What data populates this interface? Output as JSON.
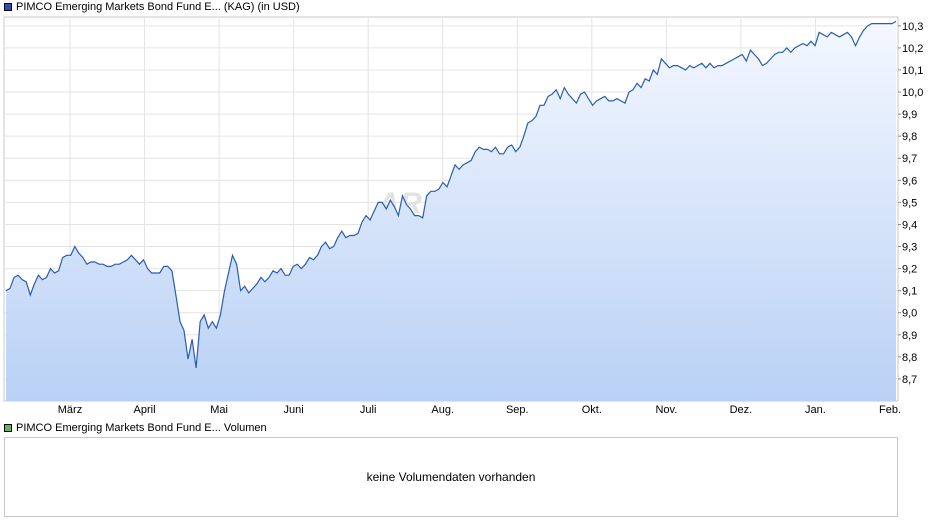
{
  "price_legend": {
    "label": "PIMCO Emerging Markets Bond Fund E... (KAG)  (in USD)",
    "color": "#2a4fa8"
  },
  "volume_legend": {
    "label": "PIMCO Emerging Markets Bond Fund E... Volumen",
    "color": "#5cb85c"
  },
  "watermark": "ARIVA.DE",
  "volume_message": "keine Volumendaten vorhanden",
  "chart_data": {
    "type": "area",
    "x_tick_labels": [
      "März",
      "April",
      "Mai",
      "Juni",
      "Juli",
      "Aug.",
      "Sep.",
      "Okt.",
      "Nov.",
      "Dez.",
      "Jan.",
      "Feb."
    ],
    "y_tick_labels": [
      "8,7",
      "8,8",
      "8,9",
      "9,0",
      "9,1",
      "9,2",
      "9,3",
      "9,4",
      "9,5",
      "9,6",
      "9,7",
      "9,8",
      "9,9",
      "10,0",
      "10,1",
      "10,2",
      "10,3"
    ],
    "y_ticks": [
      8.7,
      8.8,
      8.9,
      9.0,
      9.1,
      9.2,
      9.3,
      9.4,
      9.5,
      9.6,
      9.7,
      9.8,
      9.9,
      10.0,
      10.1,
      10.2,
      10.3
    ],
    "ylim": [
      8.6,
      10.34
    ],
    "grid": true,
    "line_color": "#2a5db0",
    "fill_top_color": "#f4f8ff",
    "fill_bottom_color": "#b9d1f5",
    "values": [
      9.1,
      9.11,
      9.16,
      9.17,
      9.15,
      9.14,
      9.08,
      9.13,
      9.17,
      9.15,
      9.16,
      9.2,
      9.18,
      9.19,
      9.25,
      9.26,
      9.26,
      9.3,
      9.27,
      9.25,
      9.22,
      9.23,
      9.23,
      9.22,
      9.22,
      9.21,
      9.21,
      9.22,
      9.22,
      9.23,
      9.24,
      9.26,
      9.24,
      9.22,
      9.24,
      9.2,
      9.18,
      9.18,
      9.18,
      9.21,
      9.21,
      9.19,
      9.08,
      8.96,
      8.92,
      8.79,
      8.88,
      8.75,
      8.96,
      8.99,
      8.93,
      8.96,
      8.93,
      8.99,
      9.1,
      9.18,
      9.26,
      9.22,
      9.1,
      9.12,
      9.09,
      9.11,
      9.13,
      9.16,
      9.14,
      9.16,
      9.19,
      9.18,
      9.2,
      9.17,
      9.17,
      9.21,
      9.22,
      9.2,
      9.22,
      9.25,
      9.24,
      9.26,
      9.3,
      9.32,
      9.29,
      9.3,
      9.34,
      9.37,
      9.34,
      9.35,
      9.35,
      9.36,
      9.41,
      9.44,
      9.42,
      9.46,
      9.5,
      9.5,
      9.47,
      9.51,
      9.48,
      9.44,
      9.53,
      9.49,
      9.47,
      9.44,
      9.44,
      9.43,
      9.53,
      9.55,
      9.55,
      9.56,
      9.59,
      9.57,
      9.62,
      9.67,
      9.65,
      9.67,
      9.68,
      9.69,
      9.73,
      9.75,
      9.74,
      9.74,
      9.73,
      9.75,
      9.72,
      9.72,
      9.75,
      9.76,
      9.73,
      9.75,
      9.8,
      9.86,
      9.87,
      9.89,
      9.94,
      9.94,
      9.98,
      9.99,
      10.01,
      9.97,
      10.02,
      9.99,
      9.97,
      9.95,
      9.99,
      10.0,
      9.97,
      9.94,
      9.96,
      9.97,
      9.98,
      9.96,
      9.96,
      9.97,
      9.96,
      9.95,
      10.0,
      10.01,
      10.04,
      10.02,
      10.06,
      10.05,
      10.1,
      10.08,
      10.15,
      10.13,
      10.11,
      10.12,
      10.12,
      10.11,
      10.1,
      10.12,
      10.11,
      10.12,
      10.13,
      10.11,
      10.13,
      10.11,
      10.12,
      10.12,
      10.13,
      10.14,
      10.15,
      10.16,
      10.17,
      10.14,
      10.19,
      10.17,
      10.15,
      10.12,
      10.13,
      10.15,
      10.17,
      10.18,
      10.18,
      10.2,
      10.18,
      10.2,
      10.21,
      10.22,
      10.21,
      10.23,
      10.21,
      10.27,
      10.26,
      10.25,
      10.27,
      10.26,
      10.25,
      10.26,
      10.27,
      10.25,
      10.21,
      10.25,
      10.28,
      10.3,
      10.31,
      10.31,
      10.31,
      10.31,
      10.31,
      10.31,
      10.32
    ]
  }
}
